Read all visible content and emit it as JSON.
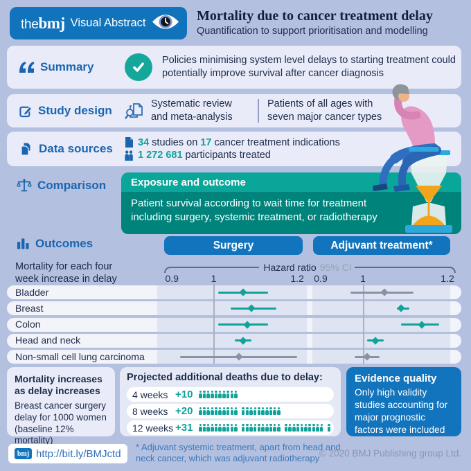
{
  "header": {
    "brand_the": "the",
    "brand_bmj": "bmj",
    "brand_label": "Visual Abstract",
    "title": "Mortality due to cancer treatment delay",
    "subtitle": "Quantification to support prioritisation and modelling"
  },
  "summary": {
    "label": "Summary",
    "text": "Policies minimising system level delays to starting treatment could potentially improve survival after cancer diagnosis"
  },
  "study_design": {
    "label": "Study design",
    "col1": "Systematic review and meta-analysis",
    "col2": "Patients of all ages with seven major cancer types"
  },
  "data_sources": {
    "label": "Data sources",
    "studies_count": "34",
    "line1_mid": " studies on ",
    "indications_count": "17",
    "line1_end": " cancer treatment indications",
    "participants_count": "1 272 681",
    "line2_end": " participants treated"
  },
  "comparison": {
    "label": "Comparison",
    "box_title": "Exposure and outcome",
    "box_text": "Patient survival according to wait time for treatment including surgery, systemic treatment, or radiotherapy"
  },
  "outcomes": {
    "label": "Outcomes"
  },
  "chart_data": [
    {
      "type": "scatter",
      "subtype": "forest-plot",
      "title": "Mortality for each four week increase in delay",
      "xlabel": "Hazard ratio",
      "xlabel_ci": "95% CI",
      "axis_ticks": [
        0.9,
        1,
        1.2
      ],
      "xlim": [
        0.88,
        1.23
      ],
      "categories": [
        "Bladder",
        "Breast",
        "Colon",
        "Head and neck",
        "Non-small cell lung carcinoma"
      ],
      "series": [
        {
          "name": "Surgery",
          "values": [
            {
              "hr": 1.07,
              "lo": 1.01,
              "hi": 1.13,
              "significant": true
            },
            {
              "hr": 1.09,
              "lo": 1.04,
              "hi": 1.15,
              "significant": true
            },
            {
              "hr": 1.08,
              "lo": 1.01,
              "hi": 1.13,
              "significant": true
            },
            {
              "hr": 1.07,
              "lo": 1.05,
              "hi": 1.09,
              "significant": true
            },
            {
              "hr": 1.06,
              "lo": 0.92,
              "hi": 1.2,
              "significant": false
            }
          ]
        },
        {
          "name": "Adjuvant treatment*",
          "values": [
            {
              "hr": 1.05,
              "lo": 0.97,
              "hi": 1.12,
              "significant": false
            },
            {
              "hr": 1.09,
              "lo": 1.08,
              "hi": 1.11,
              "significant": true
            },
            {
              "hr": 1.14,
              "lo": 1.09,
              "hi": 1.18,
              "significant": true
            },
            {
              "hr": 1.03,
              "lo": 1.01,
              "hi": 1.05,
              "significant": true
            },
            {
              "hr": 1.01,
              "lo": 0.98,
              "hi": 1.04,
              "significant": false
            }
          ]
        }
      ],
      "legend_note": "teal = statistically significant, gray = confidence interval crosses 1"
    },
    {
      "type": "pictograph",
      "title": "Projected additional deaths due to delay:",
      "categories": [
        "4 weeks",
        "8 weeks",
        "12 weeks"
      ],
      "values": [
        10,
        20,
        31
      ],
      "labels": [
        "+10",
        "+20",
        "+31"
      ]
    }
  ],
  "bottom_left": {
    "title": "Mortality increases as delay increases",
    "body": "Breast cancer surgery delay for 1000 women (baseline 12% mortality)"
  },
  "evidence": {
    "title": "Evidence quality",
    "body": "Only high validity studies accounting for major prognostic factors were included"
  },
  "footer": {
    "bmj_chip": "bmj",
    "link": "http://bit.ly/BMJctd",
    "footnote": "* Adjuvant systemic treatment, apart from head and neck cancer, which was adjuvant radiotherapy",
    "copyright": "© 2020 BMJ Publishing group Ltd."
  },
  "colors": {
    "page_bg": "#b3c0e0",
    "card_bg": "#e9ecf8",
    "bmj_blue": "#1274bd",
    "label_blue": "#1b65b0",
    "teal": "#11a39b",
    "teal_dark": "#00837b",
    "teal_header": "#0aa69a",
    "ci_gray": "#8a93a4",
    "text_dark": "#1d2b4b",
    "sand_orange": "#f2a51b"
  }
}
